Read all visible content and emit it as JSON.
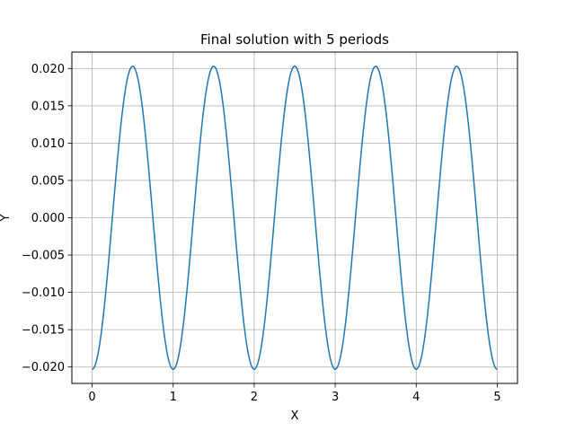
{
  "chart_data": {
    "type": "line",
    "title": "Final solution with 5 periods",
    "xlabel": "X",
    "ylabel": "Y",
    "xlim": [
      -0.25,
      5.25
    ],
    "ylim": [
      -0.0222,
      0.0222
    ],
    "xticks": [
      0,
      1,
      2,
      3,
      4,
      5
    ],
    "xtick_labels": [
      "0",
      "1",
      "2",
      "3",
      "4",
      "5"
    ],
    "yticks": [
      -0.02,
      -0.015,
      -0.01,
      -0.005,
      0.0,
      0.005,
      0.01,
      0.015,
      0.02
    ],
    "ytick_labels": [
      "−0.020",
      "−0.015",
      "−0.010",
      "−0.005",
      "0.000",
      "0.005",
      "0.010",
      "0.015",
      "0.020"
    ],
    "grid": true,
    "series": [
      {
        "color": "#1f77b4",
        "function": "y = -0.0203 * cos(2*pi*x)",
        "amplitude": 0.0203,
        "periods": 5,
        "x_range": [
          0,
          5
        ],
        "x": [
          0,
          0.125,
          0.25,
          0.375,
          0.5,
          0.625,
          0.75,
          0.875,
          1,
          1.125,
          1.25,
          1.375,
          1.5,
          1.625,
          1.75,
          1.875,
          2,
          2.125,
          2.25,
          2.375,
          2.5,
          2.625,
          2.75,
          2.875,
          3,
          3.125,
          3.25,
          3.375,
          3.5,
          3.625,
          3.75,
          3.875,
          4,
          4.125,
          4.25,
          4.375,
          4.5,
          4.625,
          4.75,
          4.875,
          5
        ],
        "y": [
          -0.0203,
          -0.01435,
          0.0,
          0.01435,
          0.0203,
          0.01435,
          0.0,
          -0.01435,
          -0.0203,
          -0.01435,
          0.0,
          0.01435,
          0.0203,
          0.01435,
          0.0,
          -0.01435,
          -0.0203,
          -0.01435,
          0.0,
          0.01435,
          0.0203,
          0.01435,
          0.0,
          -0.01435,
          -0.0203,
          -0.01435,
          0.0,
          0.01435,
          0.0203,
          0.01435,
          0.0,
          -0.01435,
          -0.0203,
          -0.01435,
          0.0,
          0.01435,
          0.0203,
          0.01435,
          0.0,
          -0.01435,
          -0.0203
        ]
      }
    ]
  }
}
